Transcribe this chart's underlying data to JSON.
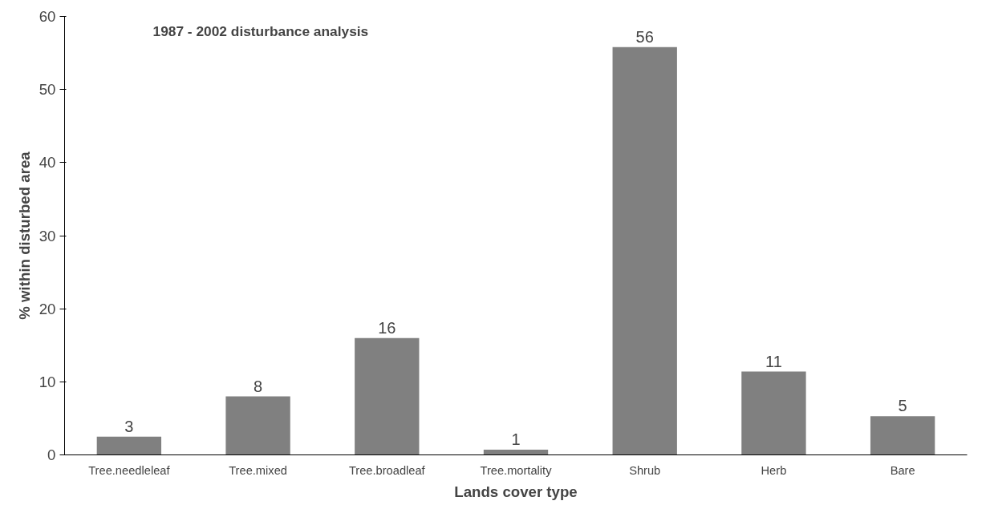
{
  "chart_data": {
    "type": "bar",
    "xlabel": "Lands cover type",
    "ylabel": "% within disturbed area",
    "annotations": [
      "1987 -  2002 disturbance analysis"
    ],
    "categories": [
      "Tree.needleleaf",
      "Tree.mixed",
      "Tree.broadleaf",
      "Tree.mortality",
      "Shrub",
      "Herb",
      "Bare"
    ],
    "values": [
      2.5,
      8.0,
      16.0,
      0.7,
      55.8,
      11.4,
      5.3
    ],
    "value_labels": [
      "3",
      "8",
      "16",
      "1",
      "56",
      "11",
      "5"
    ],
    "color": "#808080",
    "ylim": [
      0,
      60
    ],
    "yticks": [
      0,
      10,
      20,
      30,
      40,
      50,
      60
    ],
    "grid": false
  }
}
